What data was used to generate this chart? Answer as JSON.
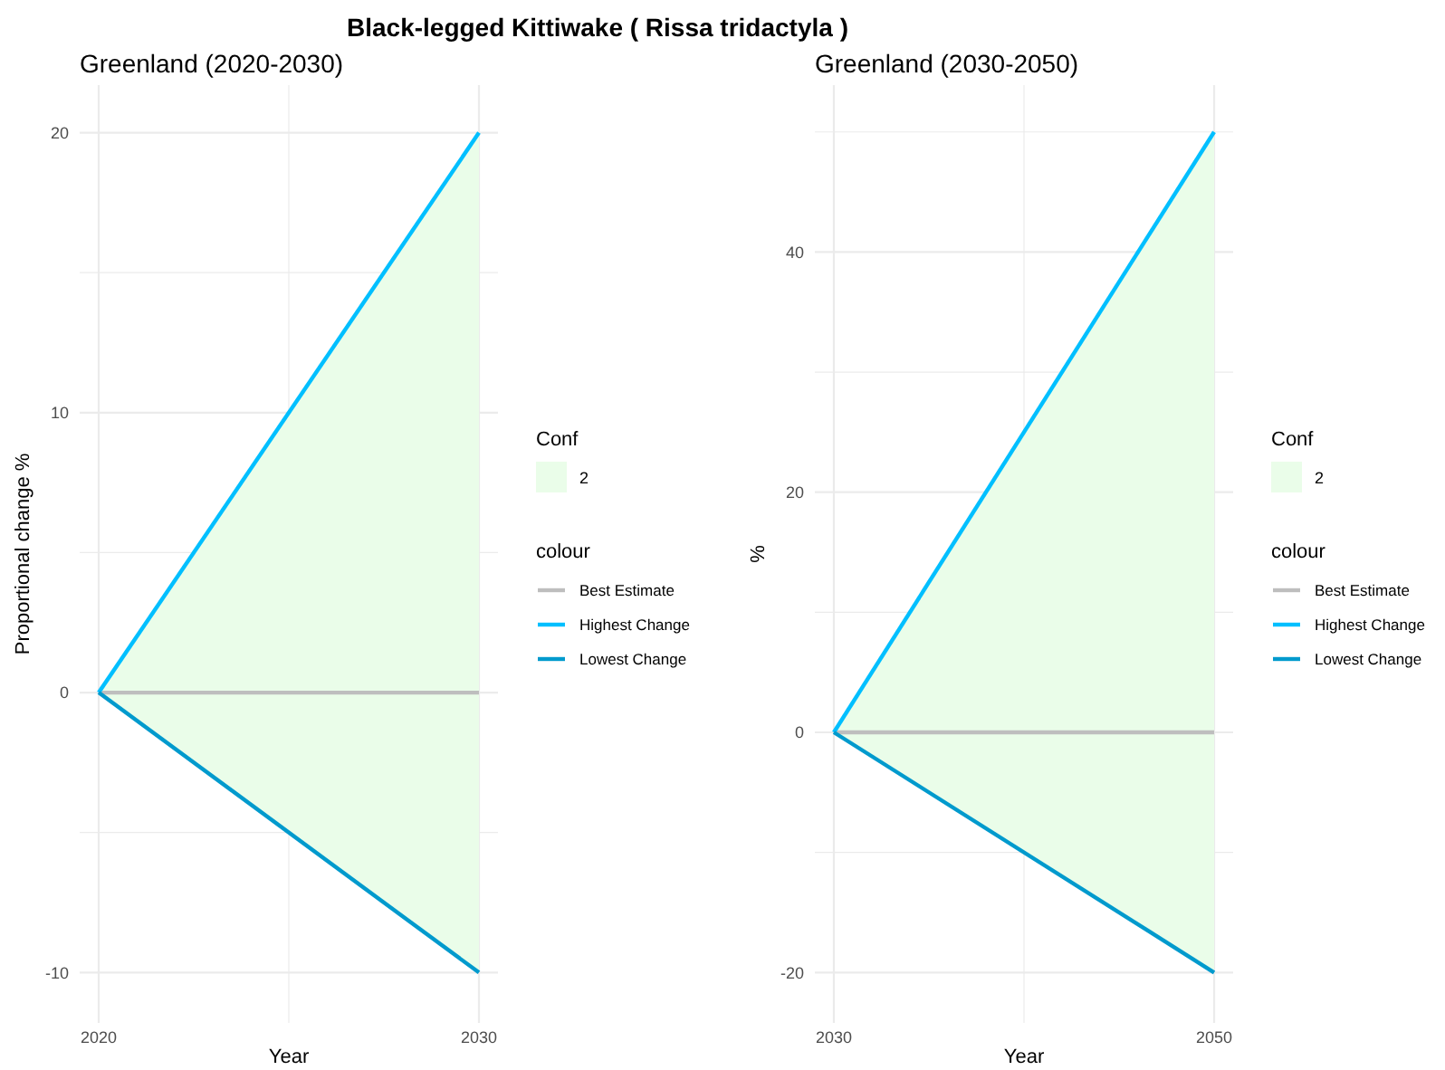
{
  "chart_data": [
    {
      "type": "line",
      "title": "Black-legged Kittiwake ( Rissa tridactyla )",
      "subtitle": "Greenland (2020-2030)",
      "xlabel": "Year",
      "ylabel": "Proportional change %",
      "legend_title": "colour",
      "annotations": [
        "Conf",
        "2"
      ],
      "x": [
        2020,
        2030
      ],
      "series": [
        {
          "name": "Best Estimate",
          "color": "#bebebe",
          "values": [
            0,
            0
          ],
          "lower": [
            0,
            -10
          ],
          "upper": [
            0,
            20
          ]
        },
        {
          "name": "Highest Change",
          "color": "#00bfff",
          "values": [
            0,
            20
          ]
        },
        {
          "name": "Lowest Change",
          "color": "#009acd",
          "values": [
            0,
            -10
          ]
        }
      ],
      "xlim": [
        2019.5,
        2030.5
      ],
      "xticks": [
        2020,
        {
          "value": 2025,
          "label": null
        },
        2030
      ],
      "ylim": [
        -11.8,
        21.7
      ],
      "yticks": [
        -10,
        {
          "value": -5,
          "label": null
        },
        0,
        {
          "value": 5,
          "label": null
        },
        10,
        {
          "value": 15,
          "label": null
        },
        20
      ],
      "grid": true,
      "legend": "right"
    },
    {
      "type": "line",
      "subtitle": "Greenland (2030-2050)",
      "xlabel": "Year",
      "ylabel": "%",
      "legend_title": "colour",
      "annotations": [
        "Conf",
        "2"
      ],
      "x": [
        2030,
        2050
      ],
      "series": [
        {
          "name": "Best Estimate",
          "color": "#bebebe",
          "values": [
            0,
            0
          ],
          "lower": [
            0,
            -20
          ],
          "upper": [
            0,
            50
          ]
        },
        {
          "name": "Highest Change",
          "color": "#00bfff",
          "values": [
            0,
            50
          ]
        },
        {
          "name": "Lowest Change",
          "color": "#009acd",
          "values": [
            0,
            -20
          ]
        }
      ],
      "xlim": [
        2029,
        2051
      ],
      "xticks": [
        2030,
        {
          "value": 2040,
          "label": null
        },
        2050
      ],
      "ylim": [
        -24.2,
        53.9
      ],
      "yticks": [
        -20,
        {
          "value": -10,
          "label": null
        },
        0,
        {
          "value": 10,
          "label": null
        },
        20,
        {
          "value": 30,
          "label": null
        },
        40,
        {
          "value": 50,
          "label": null
        }
      ],
      "grid": true,
      "legend": "right"
    }
  ]
}
